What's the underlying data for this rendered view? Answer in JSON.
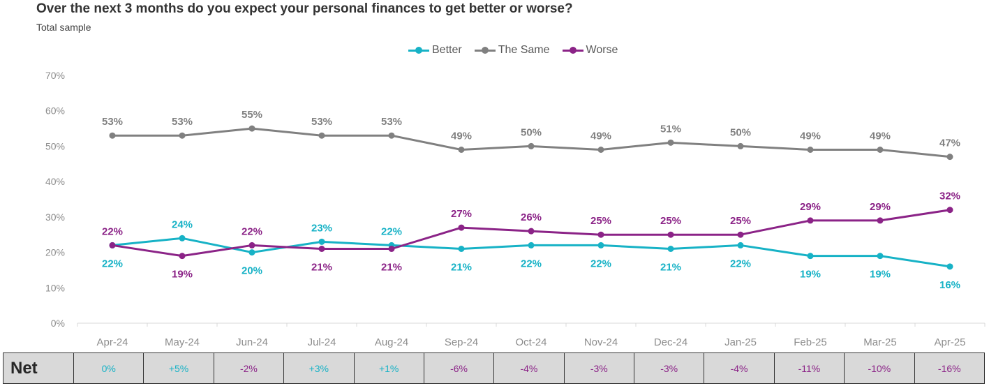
{
  "header": {
    "title": "Over the next 3 months do you expect your personal finances to get better or worse?",
    "subtitle": "Total sample"
  },
  "legend": [
    {
      "name": "Better",
      "color": "#17B2C6"
    },
    {
      "name": "The Same",
      "color": "#808080"
    },
    {
      "name": "Worse",
      "color": "#8B2387"
    }
  ],
  "chart_data": {
    "type": "line",
    "x": [
      "Apr-24",
      "May-24",
      "Jun-24",
      "Jul-24",
      "Aug-24",
      "Sep-24",
      "Oct-24",
      "Nov-24",
      "Dec-24",
      "Jan-25",
      "Feb-25",
      "Mar-25",
      "Apr-25"
    ],
    "ylim": [
      0,
      70
    ],
    "yticks": [
      "0%",
      "10%",
      "20%",
      "30%",
      "40%",
      "50%",
      "60%",
      "70%"
    ],
    "yticks_values": [
      0,
      10,
      20,
      30,
      40,
      50,
      60,
      70
    ],
    "grid": false,
    "legend_position": "top-center",
    "series": [
      {
        "name": "Better",
        "color": "#17B2C6",
        "values": [
          22,
          24,
          20,
          23,
          22,
          21,
          22,
          22,
          21,
          22,
          19,
          19,
          16
        ],
        "labels": [
          "22%",
          "24%",
          "20%",
          "23%",
          "22%",
          "21%",
          "22%",
          "22%",
          "21%",
          "22%",
          "19%",
          "19%",
          "16%"
        ]
      },
      {
        "name": "The Same",
        "color": "#808080",
        "values": [
          53,
          53,
          55,
          53,
          53,
          49,
          50,
          49,
          51,
          50,
          49,
          49,
          47
        ],
        "labels": [
          "53%",
          "53%",
          "55%",
          "53%",
          "53%",
          "49%",
          "50%",
          "49%",
          "51%",
          "50%",
          "49%",
          "49%",
          "47%"
        ]
      },
      {
        "name": "Worse",
        "color": "#8B2387",
        "values": [
          22,
          19,
          22,
          21,
          21,
          27,
          26,
          25,
          25,
          25,
          29,
          29,
          32
        ],
        "labels": [
          "22%",
          "19%",
          "22%",
          "21%",
          "21%",
          "27%",
          "26%",
          "25%",
          "25%",
          "25%",
          "29%",
          "29%",
          "32%"
        ]
      }
    ]
  },
  "net_row": {
    "label": "Net",
    "positive_color": "#17B2C6",
    "negative_color": "#8B2387",
    "cells": [
      {
        "value": "0%",
        "sign": "positive"
      },
      {
        "value": "+5%",
        "sign": "positive"
      },
      {
        "value": "-2%",
        "sign": "negative"
      },
      {
        "value": "+3%",
        "sign": "positive"
      },
      {
        "value": "+1%",
        "sign": "positive"
      },
      {
        "value": "-6%",
        "sign": "negative"
      },
      {
        "value": "-4%",
        "sign": "negative"
      },
      {
        "value": "-3%",
        "sign": "negative"
      },
      {
        "value": "-3%",
        "sign": "negative"
      },
      {
        "value": "-4%",
        "sign": "negative"
      },
      {
        "value": "-11%",
        "sign": "negative"
      },
      {
        "value": "-10%",
        "sign": "negative"
      },
      {
        "value": "-16%",
        "sign": "negative"
      }
    ]
  }
}
